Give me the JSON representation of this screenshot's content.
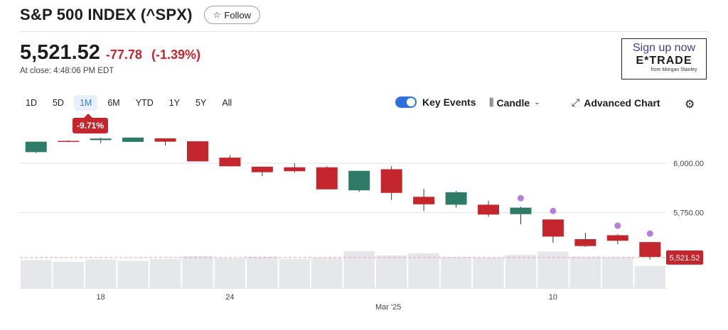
{
  "header": {
    "title": "S&P 500 INDEX (^SPX)",
    "follow_label": "Follow",
    "follow_icon": "star-icon"
  },
  "quote": {
    "price": "5,521.52",
    "change": "-77.78",
    "change_pct": "(-1.39%)",
    "close_time": "At close: 4:48:06 PM EDT"
  },
  "ad": {
    "line1": "Sign up now",
    "brand": "E*TRADE",
    "sub": "from Morgan Stanley"
  },
  "ranges": [
    "1D",
    "5D",
    "1M",
    "6M",
    "YTD",
    "1Y",
    "5Y",
    "All"
  ],
  "active_range": "1M",
  "period_change": "-9.71%",
  "toolbar": {
    "key_events_label": "Key Events",
    "key_events_on": true,
    "chart_type_label": "Candle",
    "advanced_label": "Advanced Chart",
    "settings_icon": "gear-icon"
  },
  "colors": {
    "up": "#2e7b67",
    "down": "#c4262e",
    "event": "#b57fe0",
    "accent": "#2f6fde"
  },
  "chart_data": {
    "type": "candlestick",
    "y_ticks": [
      "6,000.00",
      "5,750.00"
    ],
    "y_tick_values": [
      6000,
      5750
    ],
    "ylim": [
      5460,
      6170
    ],
    "last_price_label": "5,521.52",
    "last_price": 5521.52,
    "x_ticks": [
      {
        "label": "18",
        "index": 2
      },
      {
        "label": "24",
        "index": 6
      },
      {
        "label": "Mar '25",
        "index": 10.9
      },
      {
        "label": "10",
        "index": 16
      }
    ],
    "candles": [
      {
        "o": 6057,
        "h": 6110,
        "l": 6052,
        "c": 6110
      },
      {
        "o": 6114,
        "h": 6117,
        "l": 6108,
        "c": 6113
      },
      {
        "o": 6118,
        "h": 6130,
        "l": 6103,
        "c": 6126
      },
      {
        "o": 6109,
        "h": 6131,
        "l": 6109,
        "c": 6131
      },
      {
        "o": 6127,
        "h": 6127,
        "l": 6091,
        "c": 6110
      },
      {
        "o": 6112,
        "h": 6112,
        "l": 6011,
        "c": 6010
      },
      {
        "o": 6029,
        "h": 6042,
        "l": 5984,
        "c": 5985
      },
      {
        "o": 5983,
        "h": 5983,
        "l": 5935,
        "c": 5955
      },
      {
        "o": 5980,
        "h": 6000,
        "l": 5954,
        "c": 5960
      },
      {
        "o": 5980,
        "h": 5985,
        "l": 5868,
        "c": 5868
      },
      {
        "o": 5863,
        "h": 5960,
        "l": 5855,
        "c": 5962
      },
      {
        "o": 5970,
        "h": 5985,
        "l": 5814,
        "c": 5850
      },
      {
        "o": 5830,
        "h": 5870,
        "l": 5758,
        "c": 5792
      },
      {
        "o": 5790,
        "h": 5860,
        "l": 5775,
        "c": 5853
      },
      {
        "o": 5790,
        "h": 5810,
        "l": 5729,
        "c": 5740
      },
      {
        "o": 5742,
        "h": 5780,
        "l": 5690,
        "c": 5775
      },
      {
        "o": 5715,
        "h": 5715,
        "l": 5597,
        "c": 5628
      },
      {
        "o": 5615,
        "h": 5648,
        "l": 5576,
        "c": 5580
      },
      {
        "o": 5635,
        "h": 5640,
        "l": 5589,
        "c": 5607
      },
      {
        "o": 5600,
        "h": 5600,
        "l": 5512,
        "c": 5525
      }
    ],
    "volumes": [
      66,
      62,
      67,
      64,
      68,
      75,
      70,
      74,
      68,
      71,
      87,
      77,
      82,
      73,
      72,
      78,
      86,
      74,
      73,
      52
    ],
    "volume_max": 100,
    "key_events_at": [
      15,
      16,
      18,
      19
    ]
  }
}
